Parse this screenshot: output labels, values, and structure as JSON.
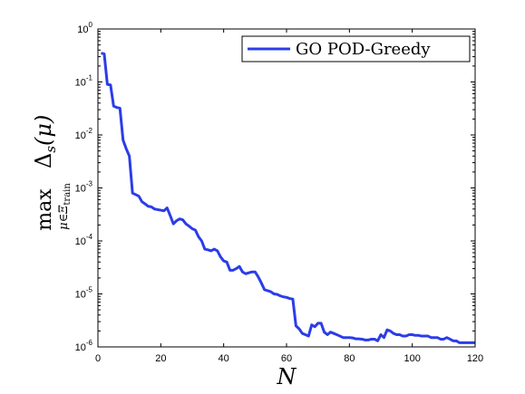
{
  "chart_data": {
    "type": "line",
    "xlabel": "N",
    "ylabel": {
      "operator": "max",
      "subscript": "μ∈Ξ",
      "subscript_sub": "train",
      "expression_main": "Δ",
      "expression_sub": "s",
      "expression_arg": "(μ)"
    },
    "xlim": [
      0,
      120
    ],
    "ylim": [
      1e-06,
      1
    ],
    "yscale": "log",
    "xticks": [
      0,
      20,
      40,
      60,
      80,
      100,
      120
    ],
    "yticks": [
      {
        "value": 1e-06,
        "exp": "-6"
      },
      {
        "value": 1e-05,
        "exp": "-5"
      },
      {
        "value": 0.0001,
        "exp": "-4"
      },
      {
        "value": 0.001,
        "exp": "-3"
      },
      {
        "value": 0.01,
        "exp": "-2"
      },
      {
        "value": 0.1,
        "exp": "-1"
      },
      {
        "value": 1,
        "exp": "0"
      }
    ],
    "grid": false,
    "legend_position": "top-right",
    "series": [
      {
        "name": "GO POD-Greedy",
        "color": "#2b3de8",
        "x": [
          1,
          2,
          3,
          4,
          5,
          6,
          7,
          8,
          9,
          10,
          11,
          12,
          13,
          14,
          15,
          16,
          17,
          18,
          19,
          20,
          21,
          22,
          23,
          24,
          25,
          26,
          27,
          28,
          29,
          30,
          31,
          32,
          33,
          34,
          35,
          36,
          37,
          38,
          39,
          40,
          41,
          42,
          43,
          44,
          45,
          46,
          47,
          48,
          49,
          50,
          51,
          52,
          53,
          54,
          55,
          56,
          57,
          58,
          59,
          60,
          61,
          62,
          63,
          64,
          65,
          66,
          67,
          68,
          69,
          70,
          71,
          72,
          73,
          74,
          75,
          76,
          77,
          78,
          79,
          80,
          81,
          82,
          83,
          84,
          85,
          86,
          87,
          88,
          89,
          90,
          91,
          92,
          93,
          94,
          95,
          96,
          97,
          98,
          99,
          100,
          101,
          102,
          103,
          104,
          105,
          106,
          107,
          108,
          109,
          110,
          111,
          112,
          113,
          114,
          115,
          116,
          117,
          118,
          119,
          120
        ],
        "y": [
          0.35,
          0.34,
          0.09,
          0.088,
          0.035,
          0.033,
          0.032,
          0.008,
          0.0055,
          0.004,
          0.0008,
          0.00075,
          0.0007,
          0.00055,
          0.0005,
          0.00045,
          0.00044,
          0.0004,
          0.00039,
          0.00038,
          0.00037,
          0.00042,
          0.0003,
          0.00021,
          0.00024,
          0.00026,
          0.00025,
          0.00021,
          0.00019,
          0.00017,
          0.00016,
          0.00012,
          0.0001,
          7e-05,
          6.8e-05,
          6.5e-05,
          7e-05,
          6.5e-05,
          5e-05,
          4.2e-05,
          4e-05,
          2.8e-05,
          2.8e-05,
          3e-05,
          3.3e-05,
          2.6e-05,
          2.4e-05,
          2.5e-05,
          2.6e-05,
          2.6e-05,
          2.1e-05,
          1.6e-05,
          1.2e-05,
          1.15e-05,
          1.1e-05,
          1e-05,
          9.8e-06,
          9.2e-06,
          8.8e-06,
          8.6e-06,
          8.2e-06,
          8e-06,
          2.5e-06,
          2.2e-06,
          1.8e-06,
          1.7e-06,
          1.6e-06,
          2.6e-06,
          2.4e-06,
          2.8e-06,
          2.8e-06,
          1.9e-06,
          1.7e-06,
          1.9e-06,
          1.8e-06,
          1.7e-06,
          1.6e-06,
          1.5e-06,
          1.5e-06,
          1.5e-06,
          1.48e-06,
          1.42e-06,
          1.42e-06,
          1.4e-06,
          1.35e-06,
          1.35e-06,
          1.4e-06,
          1.4e-06,
          1.3e-06,
          1.7e-06,
          1.5e-06,
          2.1e-06,
          2e-06,
          1.8e-06,
          1.7e-06,
          1.7e-06,
          1.6e-06,
          1.6e-06,
          1.7e-06,
          1.7e-06,
          1.65e-06,
          1.65e-06,
          1.6e-06,
          1.6e-06,
          1.6e-06,
          1.5e-06,
          1.5e-06,
          1.5e-06,
          1.4e-06,
          1.4e-06,
          1.5e-06,
          1.4e-06,
          1.3e-06,
          1.3e-06,
          1.2e-06,
          1.2e-06,
          1.2e-06,
          1.2e-06,
          1.2e-06,
          1.2e-06
        ]
      }
    ]
  }
}
